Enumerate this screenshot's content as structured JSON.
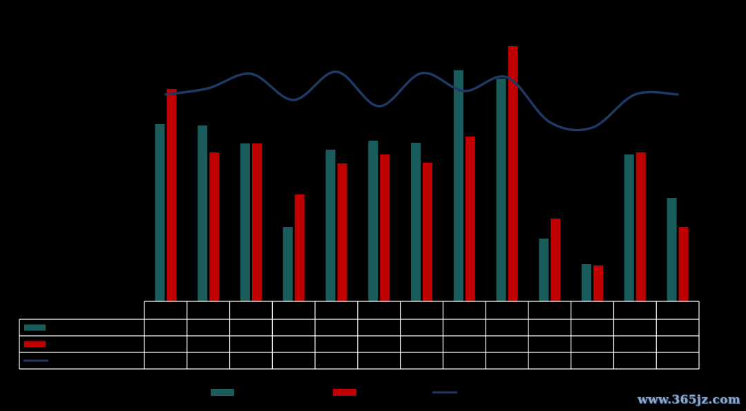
{
  "chart_data": {
    "type": "bar",
    "categories": [
      "",
      "",
      "",
      "",
      "",
      "",
      "",
      "",
      "",
      "",
      "",
      "",
      ""
    ],
    "series": [
      {
        "kind": "bar",
        "color": "#1a5c5c",
        "values": [
          257,
          255,
          229,
          108,
          220,
          233,
          230,
          335,
          323,
          91,
          54,
          213,
          150
        ]
      },
      {
        "kind": "bar",
        "color": "#c00000",
        "values": [
          308,
          216,
          229,
          155,
          200,
          213,
          201,
          239,
          370,
          120,
          52,
          216,
          108
        ]
      },
      {
        "kind": "line",
        "color": "#1f3864",
        "values": [
          300,
          309,
          330,
          292,
          333,
          283,
          331,
          305,
          325,
          260,
          252,
          300,
          300
        ]
      }
    ],
    "ylim": [
      0,
      375
    ],
    "grid": false,
    "legend": "bottom"
  },
  "watermark": "www.365jz.com"
}
